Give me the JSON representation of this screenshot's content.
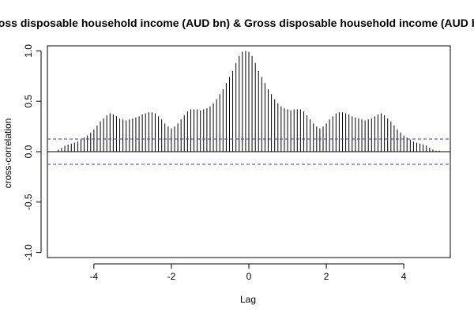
{
  "chart_data": {
    "type": "bar",
    "title": "Gross disposable household income (AUD bn) & Gross disposable household income (AUD bn)",
    "xlabel": "Lag",
    "ylabel": "cross-correlation",
    "xlim": [
      -5.2,
      5.2
    ],
    "ylim": [
      -1.05,
      1.05
    ],
    "x_ticks": [
      "-4",
      "-2",
      "0",
      "2",
      "4"
    ],
    "y_ticks": [
      "-1.0",
      "-0.5",
      "0.0",
      "0.5",
      "1.0"
    ],
    "lag_step": 0.0833,
    "x": [
      -4.917,
      -4.833,
      -4.75,
      -4.667,
      -4.583,
      -4.5,
      -4.417,
      -4.333,
      -4.25,
      -4.167,
      -4.083,
      -4.0,
      -3.917,
      -3.833,
      -3.75,
      -3.667,
      -3.583,
      -3.5,
      -3.417,
      -3.333,
      -3.25,
      -3.167,
      -3.083,
      -3.0,
      -2.917,
      -2.833,
      -2.75,
      -2.667,
      -2.583,
      -2.5,
      -2.417,
      -2.333,
      -2.25,
      -2.167,
      -2.083,
      -2.0,
      -1.917,
      -1.833,
      -1.75,
      -1.667,
      -1.583,
      -1.5,
      -1.417,
      -1.333,
      -1.25,
      -1.167,
      -1.083,
      -1.0,
      -0.917,
      -0.833,
      -0.75,
      -0.667,
      -0.583,
      -0.5,
      -0.417,
      -0.333,
      -0.25,
      -0.167,
      -0.083,
      0.0,
      0.083,
      0.167,
      0.25,
      0.333,
      0.417,
      0.5,
      0.583,
      0.667,
      0.75,
      0.833,
      0.917,
      1.0,
      1.083,
      1.167,
      1.25,
      1.333,
      1.417,
      1.5,
      1.583,
      1.667,
      1.75,
      1.833,
      1.917,
      2.0,
      2.083,
      2.167,
      2.25,
      2.333,
      2.417,
      2.5,
      2.583,
      2.667,
      2.75,
      2.833,
      2.917,
      3.0,
      3.083,
      3.167,
      3.25,
      3.333,
      3.417,
      3.5,
      3.583,
      3.667,
      3.75,
      3.833,
      3.917,
      4.0,
      4.083,
      4.167,
      4.25,
      4.333,
      4.417,
      4.5,
      4.583,
      4.667,
      4.75,
      4.833,
      4.917
    ],
    "values": [
      0.02,
      0.04,
      0.06,
      0.07,
      0.08,
      0.09,
      0.1,
      0.12,
      0.14,
      0.16,
      0.19,
      0.22,
      0.26,
      0.3,
      0.33,
      0.36,
      0.38,
      0.37,
      0.35,
      0.33,
      0.32,
      0.31,
      0.32,
      0.33,
      0.34,
      0.35,
      0.37,
      0.38,
      0.39,
      0.39,
      0.38,
      0.35,
      0.32,
      0.28,
      0.25,
      0.23,
      0.25,
      0.28,
      0.32,
      0.36,
      0.4,
      0.42,
      0.42,
      0.42,
      0.41,
      0.42,
      0.43,
      0.45,
      0.48,
      0.52,
      0.57,
      0.62,
      0.68,
      0.74,
      0.8,
      0.88,
      0.95,
      0.99,
      1.0,
      0.99,
      0.95,
      0.88,
      0.8,
      0.74,
      0.68,
      0.62,
      0.57,
      0.52,
      0.48,
      0.45,
      0.43,
      0.42,
      0.41,
      0.42,
      0.42,
      0.42,
      0.4,
      0.36,
      0.32,
      0.28,
      0.25,
      0.23,
      0.25,
      0.28,
      0.32,
      0.35,
      0.38,
      0.39,
      0.39,
      0.38,
      0.37,
      0.35,
      0.34,
      0.33,
      0.32,
      0.31,
      0.32,
      0.33,
      0.35,
      0.37,
      0.38,
      0.36,
      0.33,
      0.3,
      0.26,
      0.22,
      0.19,
      0.16,
      0.14,
      0.12,
      0.1,
      0.09,
      0.08,
      0.07,
      0.06,
      0.04,
      0.02,
      0.01,
      0.01
    ],
    "confidence_band": [
      -0.125,
      0.125
    ],
    "colors": {
      "bars": "#000000",
      "confidence": "#3a3ad8",
      "frame": "#000000"
    },
    "grid": false,
    "legend": "none"
  }
}
